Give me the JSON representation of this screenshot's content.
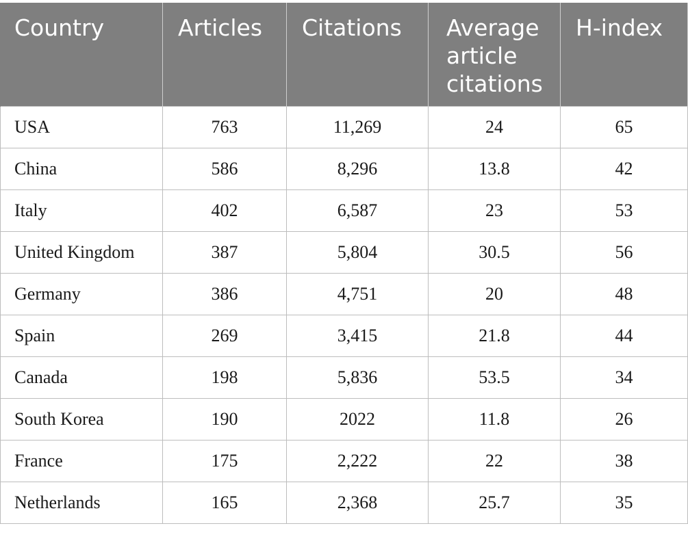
{
  "table": {
    "headers": [
      "Country",
      "Articles",
      "Citations",
      "Average article citations",
      "H-index"
    ],
    "rows": [
      [
        "USA",
        "763",
        "11,269",
        "24",
        "65"
      ],
      [
        "China",
        "586",
        "8,296",
        "13.8",
        "42"
      ],
      [
        "Italy",
        "402",
        "6,587",
        "23",
        "53"
      ],
      [
        "United Kingdom",
        "387",
        "5,804",
        "30.5",
        "56"
      ],
      [
        "Germany",
        "386",
        "4,751",
        "20",
        "48"
      ],
      [
        "Spain",
        "269",
        "3,415",
        "21.8",
        "44"
      ],
      [
        "Canada",
        "198",
        "5,836",
        "53.5",
        "34"
      ],
      [
        "South Korea",
        "190",
        "2022",
        "11.8",
        "26"
      ],
      [
        "France",
        "175",
        "2,222",
        "22",
        "38"
      ],
      [
        "Netherlands",
        "165",
        "2,368",
        "25.7",
        "35"
      ]
    ]
  },
  "colors": {
    "header_background": "#7f7f7f",
    "header_text": "#ffffff",
    "grid_line": "#bdbdbd"
  }
}
